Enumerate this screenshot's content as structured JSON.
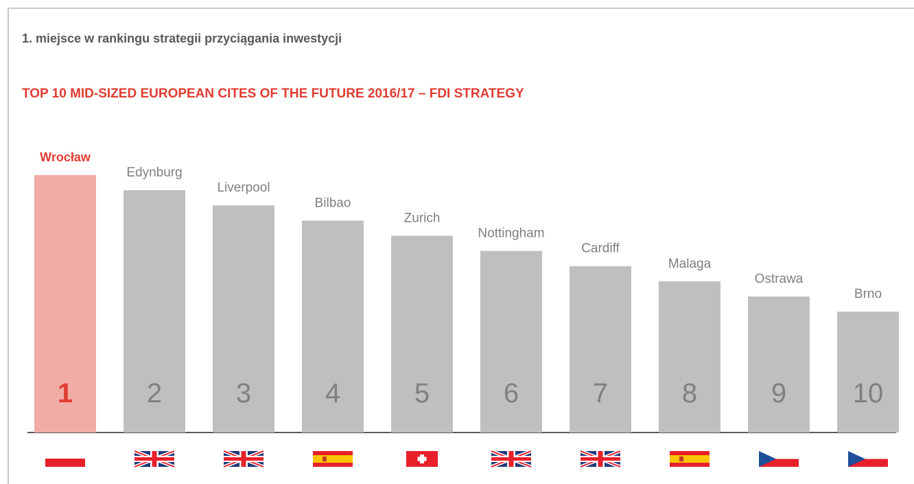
{
  "chart_data": {
    "type": "bar",
    "title": "1. miejsce w rankingu strategii przyciągania inwestycji",
    "subtitle": "TOP 10 MID-SIZED EUROPEAN CITES OF THE FUTURE 2016/17 – FDI STRATEGY",
    "categories": [
      "Wrocław",
      "Edynburg",
      "Liverpool",
      "Bilbao",
      "Zurich",
      "Nottingham",
      "Cardiff",
      "Malaga",
      "Ostrawa",
      "Brno"
    ],
    "values": [
      1,
      2,
      3,
      4,
      5,
      6,
      7,
      8,
      9,
      10
    ],
    "color": "#bfbfbf",
    "highlight_color": "#f2aca6",
    "label_color": "#808080",
    "highlight_label_color": "#e03c31"
  }
}
